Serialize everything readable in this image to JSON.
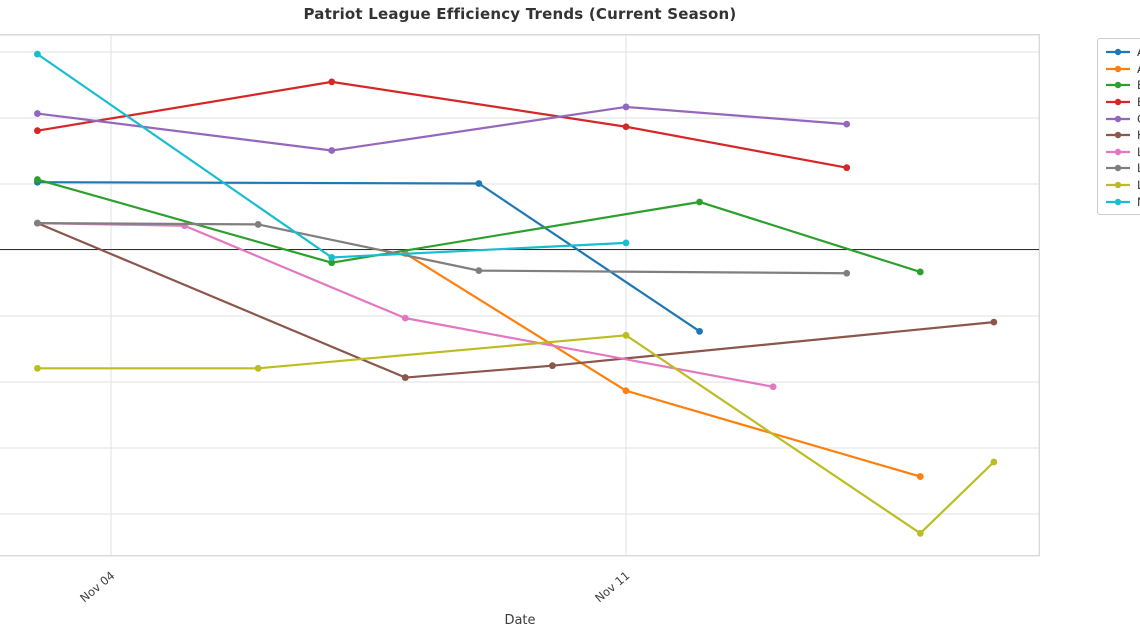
{
  "chart": {
    "title": "Patriot League Efficiency Trends (Current Season)",
    "xlabel": "Date",
    "x_tick_labels": [
      "Nov 04",
      "Nov 11"
    ]
  },
  "chart_data": {
    "type": "line",
    "title": "Patriot League Efficiency Trends (Current Season)",
    "xlabel": "Date",
    "ylabel": "",
    "x_tick_labels": [
      "Nov 04",
      "Nov 11"
    ],
    "x_range_dates": [
      "Nov 03",
      "Nov 17"
    ],
    "grid": true,
    "legend_position": "outside-right-top (clipped at image edge)",
    "legend_labels_clipped": true,
    "y_axis": {
      "tick_labels_visible": false,
      "zero_baseline_line": true,
      "estimated_gridline_step": 5,
      "estimated_visible_range": [
        -23,
        16.3
      ]
    },
    "zero_line_color": "#2f2f2f",
    "gridline_color": "#e7e7e7",
    "series": [
      {
        "label": "A",
        "color": "#1f77b4",
        "points": [
          {
            "date": "Nov 03",
            "value": 5.1
          },
          {
            "date": "Nov 09",
            "value": 5.0
          },
          {
            "date": "Nov 12",
            "value": -6.2
          }
        ]
      },
      {
        "label": "A",
        "color": "#ff7f0e",
        "points": [
          {
            "date": "Nov 08",
            "value": -0.3
          },
          {
            "date": "Nov 11",
            "value": -10.7
          },
          {
            "date": "Nov 15",
            "value": -17.2
          }
        ]
      },
      {
        "label": "B",
        "color": "#2ca02c",
        "points": [
          {
            "date": "Nov 03",
            "value": 5.3
          },
          {
            "date": "Nov 07",
            "value": -1.0
          },
          {
            "date": "Nov 12",
            "value": 3.6
          },
          {
            "date": "Nov 15",
            "value": -1.7
          }
        ]
      },
      {
        "label": "B",
        "color": "#d62728",
        "points": [
          {
            "date": "Nov 03",
            "value": 9.0
          },
          {
            "date": "Nov 07",
            "value": 12.7
          },
          {
            "date": "Nov 11",
            "value": 9.3
          },
          {
            "date": "Nov 14",
            "value": 6.2
          }
        ]
      },
      {
        "label": "C",
        "color": "#9467bd",
        "points": [
          {
            "date": "Nov 03",
            "value": 10.3
          },
          {
            "date": "Nov 07",
            "value": 7.5
          },
          {
            "date": "Nov 11",
            "value": 10.8
          },
          {
            "date": "Nov 14",
            "value": 9.5
          }
        ]
      },
      {
        "label": "H",
        "color": "#8c564b",
        "points": [
          {
            "date": "Nov 03",
            "value": 2.0
          },
          {
            "date": "Nov 08",
            "value": -9.7
          },
          {
            "date": "Nov 10",
            "value": -8.8
          },
          {
            "date": "Nov 16",
            "value": -5.5
          }
        ]
      },
      {
        "label": "L",
        "color": "#e377c2",
        "points": [
          {
            "date": "Nov 03",
            "value": 2.0
          },
          {
            "date": "Nov 05",
            "value": 1.8
          },
          {
            "date": "Nov 08",
            "value": -5.2
          },
          {
            "date": "Nov 13",
            "value": -10.4
          }
        ]
      },
      {
        "label": "L",
        "color": "#7f7f7f",
        "points": [
          {
            "date": "Nov 03",
            "value": 2.0
          },
          {
            "date": "Nov 06",
            "value": 1.9
          },
          {
            "date": "Nov 09",
            "value": -1.6
          },
          {
            "date": "Nov 14",
            "value": -1.8
          }
        ]
      },
      {
        "label": "L",
        "color": "#bcbd22",
        "points": [
          {
            "date": "Nov 03",
            "value": -9.0
          },
          {
            "date": "Nov 06",
            "value": -9.0
          },
          {
            "date": "Nov 11",
            "value": -6.5
          },
          {
            "date": "Nov 15",
            "value": -21.5
          },
          {
            "date": "Nov 16",
            "value": -16.1
          }
        ]
      },
      {
        "label": "N",
        "color": "#17becf",
        "points": [
          {
            "date": "Nov 03",
            "value": 14.8
          },
          {
            "date": "Nov 07",
            "value": -0.6
          },
          {
            "date": "Nov 11",
            "value": 0.5
          }
        ]
      }
    ]
  }
}
